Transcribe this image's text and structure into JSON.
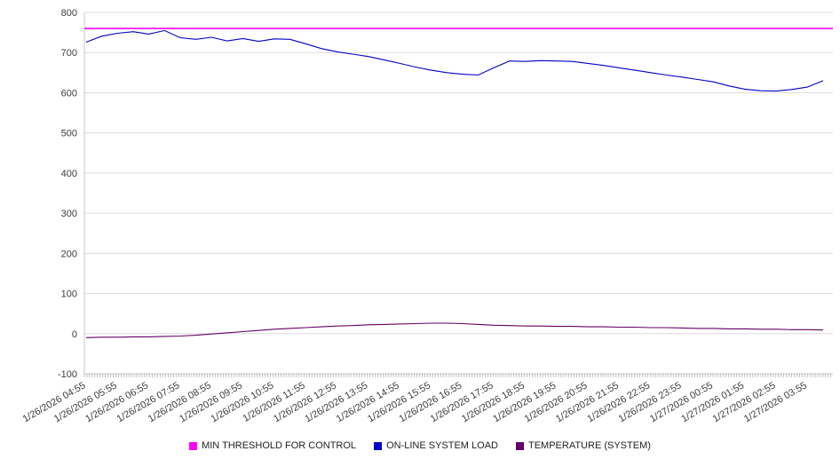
{
  "chart_data": {
    "type": "line",
    "title": "",
    "ylim": [
      -100,
      800
    ],
    "y_tick_step": 100,
    "y_tick_labels": [
      "800",
      "700",
      "600",
      "500",
      "400",
      "300",
      "200",
      "100",
      "0",
      "-100"
    ],
    "x_tick_labels": [
      "1/26/2026 04:55",
      "1/26/2026 05:55",
      "1/26/2026 06:55",
      "1/26/2026 07:55",
      "1/26/2026 08:55",
      "1/26/2026 09:55",
      "1/26/2026 10:55",
      "1/26/2026 11:55",
      "1/26/2026 12:55",
      "1/26/2026 13:55",
      "1/26/2026 14:55",
      "1/26/2026 15:55",
      "1/26/2026 16:55",
      "1/26/2026 17:55",
      "1/26/2026 18:55",
      "1/26/2026 19:55",
      "1/26/2026 20:55",
      "1/26/2026 21:55",
      "1/26/2026 22:55",
      "1/26/2026 23:55",
      "1/27/2026 00:55",
      "1/27/2026 01:55",
      "1/27/2026 02:55",
      "1/27/2026 03:55"
    ],
    "x_ticks_every_points": 2,
    "points_per_hour": 2,
    "grid": "horizontal",
    "legend_position": "bottom",
    "colors": {
      "background": "#ffffff",
      "grid": "#dcdcdc",
      "axis": "#c8c8c8",
      "tick": "#9a9a9a",
      "text": "#3c3c3c"
    },
    "series": [
      {
        "name": "MIN THRESHOLD FOR CONTROL",
        "color": "#ff00ff",
        "type": "constant",
        "value": 760
      },
      {
        "name": "ON-LINE SYSTEM LOAD",
        "color": "#0000cc",
        "type": "line",
        "values": [
          726,
          741,
          748,
          752,
          746,
          755,
          737,
          733,
          738,
          729,
          735,
          728,
          734,
          733,
          722,
          710,
          702,
          696,
          690,
          682,
          673,
          664,
          656,
          650,
          646,
          644,
          662,
          679,
          678,
          680,
          679,
          678,
          673,
          668,
          662,
          656,
          650,
          644,
          639,
          633,
          627,
          617,
          609,
          605,
          604,
          608,
          614,
          630
        ]
      },
      {
        "name": "TEMPERATURE (SYSTEM)",
        "color": "#660066",
        "type": "line",
        "values": [
          -10,
          -9,
          -9,
          -8,
          -8,
          -7,
          -6,
          -4,
          -1,
          2,
          5,
          8,
          11,
          13,
          15,
          17,
          19,
          20,
          22,
          23,
          24,
          25,
          26,
          26,
          25,
          23,
          21,
          20,
          19,
          19,
          18,
          18,
          17,
          17,
          16,
          16,
          15,
          15,
          14,
          13,
          13,
          12,
          12,
          11,
          11,
          10,
          10,
          9
        ]
      }
    ]
  }
}
